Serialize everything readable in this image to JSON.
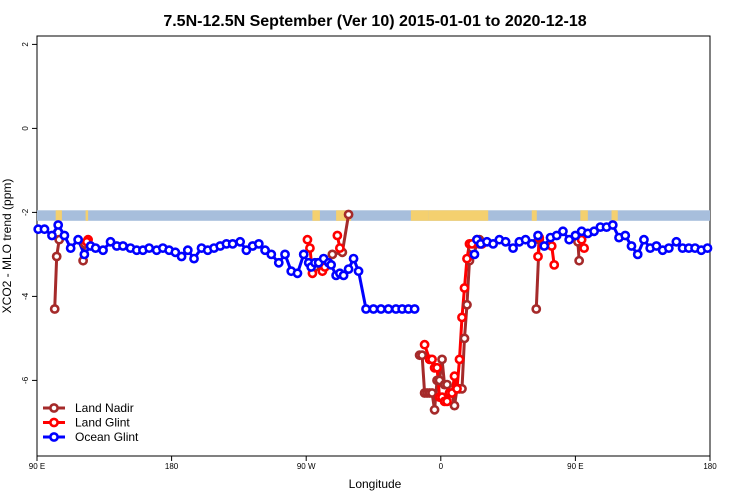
{
  "chart_data": {
    "type": "line",
    "title": "7.5N-12.5N September (Ver 10)   2015-01-01 to 2020-12-18",
    "xlabel": "Longitude",
    "ylabel": "XCO2 - MLO trend (ppm)",
    "xlim": [
      -90,
      180
    ],
    "ylim": [
      -7.8,
      2.2
    ],
    "x_ticks": [
      {
        "value": -90,
        "label": "90 E"
      },
      {
        "value": -36,
        "label": "180"
      },
      {
        "value": 18,
        "label": "90 W"
      },
      {
        "value": 72,
        "label": "0"
      },
      {
        "value": 126,
        "label": "90 E"
      },
      {
        "value": 180,
        "label": "180"
      }
    ],
    "y_ticks": [
      {
        "value": 2,
        "label": "2"
      },
      {
        "value": 0,
        "label": "0"
      },
      {
        "value": -2,
        "label": "-2"
      },
      {
        "value": -4,
        "label": "-4"
      },
      {
        "value": -6,
        "label": "-6"
      }
    ],
    "land_band": {
      "y_top": -1.95,
      "y_bottom": -2.2,
      "ocean_color": "#a7bedc",
      "land_color": "#f4d06f"
    },
    "land_segments": [
      [
        -82.5,
        -80.0
      ],
      [
        -70.5,
        -69.5
      ],
      [
        20.5,
        23.5
      ],
      [
        30.0,
        36.0
      ],
      [
        60.0,
        67.0
      ],
      [
        67.0,
        91.0
      ],
      [
        108.5,
        110.5
      ],
      [
        128.0,
        131.0
      ],
      [
        140.5,
        143.0
      ]
    ],
    "series": [
      {
        "name": "Land Nadir",
        "color": "#a52a2a",
        "segments": [
          {
            "x": [
              -82.9,
              -82.1,
              -81.1
            ],
            "y": [
              -4.3,
              -3.05,
              -2.65
            ]
          },
          {
            "x": [
              -71.5,
              -70.8
            ],
            "y": [
              -3.15,
              -2.75
            ]
          },
          {
            "x": [
              21.5,
              22.5
            ],
            "y": [
              -3.3,
              -3.2
            ]
          },
          {
            "x": [
              28.5,
              32.5,
              35.0
            ],
            "y": [
              -3.0,
              -2.95,
              -2.05
            ]
          },
          {
            "x": [
              63.5,
              64.5,
              65.5,
              66.5,
              67.5,
              68.5,
              69.5,
              70.5,
              71.5,
              72.5,
              73.5,
              74.5,
              75.5,
              76.5,
              77.5,
              78.5,
              79.5,
              80.5,
              81.5,
              82.5,
              83.5,
              84.5,
              85.5,
              86.5,
              87.5,
              88.5
            ],
            "y": [
              -5.4,
              -5.4,
              -6.3,
              -6.3,
              -6.3,
              -6.3,
              -6.7,
              -6.0,
              -6.0,
              -5.5,
              -6.1,
              -6.1,
              -6.3,
              -6.3,
              -6.6,
              -6.2,
              -6.2,
              -6.2,
              -5.0,
              -4.2,
              -3.15,
              -2.85,
              -2.75,
              -2.65,
              -2.65,
              -2.75
            ]
          },
          {
            "x": [
              110.3,
              111.5
            ],
            "y": [
              -4.3,
              -2.65
            ]
          },
          {
            "x": [
              127.5,
              127.0
            ],
            "y": [
              -3.15,
              -2.7
            ]
          }
        ]
      },
      {
        "name": "Land Glint",
        "color": "#ff0000",
        "segments": [
          {
            "x": [
              -69.5,
              -70.0
            ],
            "y": [
              -2.65,
              -2.7
            ]
          },
          {
            "x": [
              18.5,
              19.5,
              20.5
            ],
            "y": [
              -2.65,
              -2.85,
              -3.45
            ]
          },
          {
            "x": [
              24.5,
              25.5
            ],
            "y": [
              -3.4,
              -3.3
            ]
          },
          {
            "x": [
              30.5,
              31.5
            ],
            "y": [
              -2.55,
              -2.85
            ]
          },
          {
            "x": [
              65.5,
              67.5,
              68.5,
              69.5,
              70.5,
              71.5,
              72.5,
              73.5,
              74.5,
              75.5,
              76.5,
              77.5,
              78.5,
              79.5,
              80.5,
              81.5,
              82.5,
              83.5,
              84.5
            ],
            "y": [
              -5.15,
              -5.5,
              -5.5,
              -5.7,
              -5.7,
              -6.4,
              -6.4,
              -6.5,
              -6.5,
              -6.3,
              -6.3,
              -5.9,
              -6.2,
              -5.5,
              -4.5,
              -3.8,
              -3.1,
              -2.75,
              -2.75
            ]
          },
          {
            "x": [
              87.5,
              88.5
            ],
            "y": [
              -2.75,
              -2.75
            ]
          },
          {
            "x": [
              116.5,
              117.5
            ],
            "y": [
              -2.8,
              -3.25
            ]
          },
          {
            "x": [
              111.0,
              111.5
            ],
            "y": [
              -3.05,
              -2.6
            ]
          },
          {
            "x": [
              128.5,
              129.5
            ],
            "y": [
              -2.65,
              -2.85
            ]
          }
        ]
      },
      {
        "name": "Ocean Glint",
        "color": "#0000ff",
        "segments": [
          {
            "x": [
              -89.5,
              -87.0,
              -84.0,
              -81.5,
              -79.0,
              -76.5,
              -73.5,
              -71.0,
              -68.5,
              -66.5,
              -63.5,
              -60.5,
              -58.0,
              -55.5,
              -52.5,
              -50.0,
              -47.5,
              -45.0,
              -42.0,
              -39.5,
              -37.0,
              -34.5,
              -32.0,
              -29.5,
              -27.0,
              -24.0,
              -21.5,
              -19.0,
              -16.5,
              -14.0,
              -11.5,
              -8.5,
              -6.0,
              -3.5,
              -1.0,
              1.5,
              4.0,
              7.0,
              9.5,
              12.0,
              14.5,
              17.0,
              19.0,
              20.0,
              21.5,
              23.0,
              25.0,
              27.0,
              28.0,
              30.0,
              31.5,
              33.0,
              35.0,
              37.0,
              39.0,
              42.0,
              45.0,
              48.0,
              51.0,
              54.0,
              56.5,
              59.0,
              61.5
            ],
            "y": [
              -2.4,
              -2.4,
              -2.55,
              -2.3,
              -2.55,
              -2.85,
              -2.65,
              -3.0,
              -2.8,
              -2.85,
              -2.9,
              -2.7,
              -2.8,
              -2.8,
              -2.85,
              -2.9,
              -2.9,
              -2.85,
              -2.9,
              -2.85,
              -2.9,
              -2.95,
              -3.05,
              -2.9,
              -3.1,
              -2.85,
              -2.9,
              -2.85,
              -2.8,
              -2.75,
              -2.75,
              -2.7,
              -2.9,
              -2.8,
              -2.75,
              -2.9,
              -3.0,
              -3.2,
              -3.0,
              -3.4,
              -3.45,
              -3.0,
              -3.2,
              -3.3,
              -3.2,
              -3.2,
              -3.1,
              -3.2,
              -3.25,
              -3.5,
              -3.45,
              -3.5,
              -3.35,
              -3.1,
              -3.4,
              -4.3,
              -4.3,
              -4.3,
              -4.3,
              -4.3,
              -4.3,
              -4.3,
              -4.3
            ]
          },
          {
            "x": [
              85.5,
              86.5,
              88.0,
              90.5,
              93.0,
              95.5,
              98.0,
              101.0,
              103.5,
              106.0,
              108.5,
              111.0,
              113.5,
              116.0,
              118.5,
              121.0,
              123.5,
              126.0,
              128.5,
              131.0,
              133.5,
              136.0,
              138.5,
              141.0,
              143.5,
              146.0,
              148.5,
              151.0,
              153.5,
              156.0,
              158.5,
              161.0,
              163.5,
              166.5,
              169.0,
              171.5,
              174.0,
              176.5,
              179.0
            ],
            "y": [
              -3.0,
              -2.65,
              -2.75,
              -2.7,
              -2.75,
              -2.65,
              -2.7,
              -2.85,
              -2.7,
              -2.65,
              -2.75,
              -2.55,
              -2.8,
              -2.6,
              -2.55,
              -2.45,
              -2.65,
              -2.55,
              -2.45,
              -2.5,
              -2.45,
              -2.35,
              -2.35,
              -2.3,
              -2.6,
              -2.55,
              -2.8,
              -3.0,
              -2.65,
              -2.85,
              -2.8,
              -2.9,
              -2.85,
              -2.7,
              -2.85,
              -2.85,
              -2.85,
              -2.9,
              -2.85
            ]
          }
        ]
      }
    ],
    "legend": {
      "position": "bottom-left",
      "entries": [
        "Land Nadir",
        "Land Glint",
        "Ocean Glint"
      ]
    }
  }
}
